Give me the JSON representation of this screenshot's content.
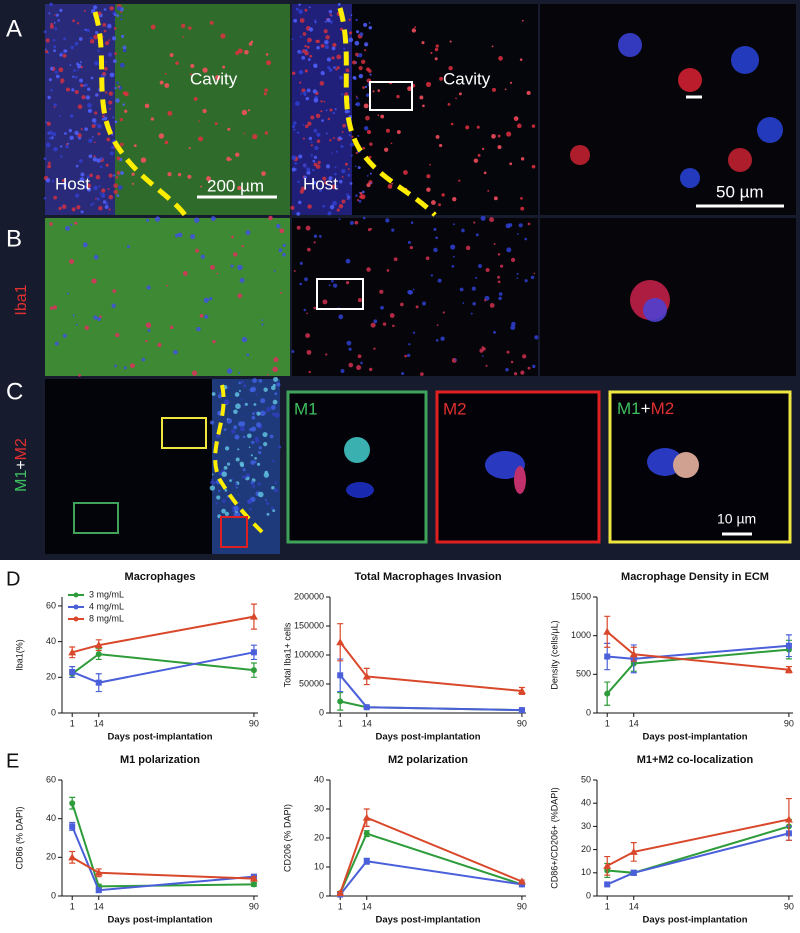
{
  "figure": {
    "panel_a": {
      "label": "A",
      "cavity_1": "Cavity",
      "host_1": "Host",
      "scale_1": "200 µm",
      "cavity_2": "Cavity",
      "host_2": "Host",
      "scale_2": "50 µm"
    },
    "panel_b": {
      "label": "B",
      "stain": "Iba1"
    },
    "panel_c": {
      "label": "C",
      "stain_m1": "M1",
      "stain_plus": "+",
      "stain_m2": "M2",
      "inset_m1": "M1",
      "inset_m2": "M2",
      "inset_merge_m1": "M1",
      "inset_merge_plus": "+",
      "inset_merge_m2": "M2",
      "scale": "10 µm"
    },
    "panel_d": {
      "label": "D"
    },
    "panel_e": {
      "label": "E"
    }
  },
  "chart_data": [
    {
      "type": "line",
      "title": "Macrophages",
      "x_label": "Days post-implantation",
      "y_label": "Iba1(%)",
      "x": [
        1,
        14,
        90
      ],
      "xlim": [
        -4,
        92
      ],
      "xticks": [
        1,
        14,
        90
      ],
      "ylim": [
        0,
        65
      ],
      "yticks": [
        0,
        20,
        40,
        60
      ],
      "legend": "upper left",
      "series": [
        {
          "name": "3 mg/mL",
          "color": "#2e9c3a",
          "values": [
            22,
            33,
            24
          ],
          "errors": [
            2,
            3,
            4
          ]
        },
        {
          "name": "4 mg/mL",
          "color": "#4a5fd9",
          "values": [
            23,
            17,
            34
          ],
          "errors": [
            3,
            5,
            4
          ]
        },
        {
          "name": "8 mg/mL",
          "color": "#d9482a",
          "values": [
            34,
            38,
            54
          ],
          "errors": [
            3,
            3,
            7
          ]
        }
      ]
    },
    {
      "type": "line",
      "title": "Total Macrophages Invasion",
      "x_label": "Days post-implantation",
      "y_label": "Total Iba1+ cells",
      "x": [
        1,
        14,
        90
      ],
      "xlim": [
        -4,
        92
      ],
      "xticks": [
        1,
        14,
        90
      ],
      "ylim": [
        0,
        200000
      ],
      "yticks": [
        0,
        50000,
        100000,
        150000,
        200000
      ],
      "series": [
        {
          "color": "#2e9c3a",
          "values": [
            20000,
            10000,
            5000
          ],
          "errors": [
            15000,
            2000,
            1000
          ]
        },
        {
          "color": "#4a5fd9",
          "values": [
            65000,
            10000,
            5000
          ],
          "errors": [
            28000,
            2000,
            1000
          ]
        },
        {
          "color": "#d9482a",
          "values": [
            122000,
            63000,
            38000
          ],
          "errors": [
            32000,
            14000,
            6000
          ]
        }
      ]
    },
    {
      "type": "line",
      "title": "Macrophage Density in ECM",
      "x_label": "Days post-implantation",
      "y_label": "Density (cells/µL)",
      "x": [
        1,
        14,
        90
      ],
      "xlim": [
        -4,
        92
      ],
      "xticks": [
        1,
        14,
        90
      ],
      "ylim": [
        0,
        1500
      ],
      "yticks": [
        0,
        500,
        1000,
        1500
      ],
      "series": [
        {
          "color": "#2e9c3a",
          "values": [
            250,
            640,
            820
          ],
          "errors": [
            150,
            100,
            120
          ]
        },
        {
          "color": "#4a5fd9",
          "values": [
            730,
            700,
            870
          ],
          "errors": [
            170,
            180,
            140
          ]
        },
        {
          "color": "#d9482a",
          "values": [
            1050,
            760,
            560
          ],
          "errors": [
            200,
            90,
            40
          ]
        }
      ]
    },
    {
      "type": "line",
      "title": "M1 polarization",
      "x_label": "Days post-implantation",
      "y_label": "CD86 (% DAPI)",
      "x": [
        1,
        14,
        90
      ],
      "xlim": [
        -4,
        92
      ],
      "xticks": [
        1,
        14,
        90
      ],
      "ylim": [
        0,
        60
      ],
      "yticks": [
        0,
        20,
        40,
        60
      ],
      "series": [
        {
          "color": "#2e9c3a",
          "values": [
            48,
            5,
            6
          ],
          "errors": [
            3,
            1,
            1
          ]
        },
        {
          "color": "#4a5fd9",
          "values": [
            36,
            3,
            10
          ],
          "errors": [
            2,
            1,
            1
          ]
        },
        {
          "color": "#d9482a",
          "values": [
            20,
            12,
            9
          ],
          "errors": [
            3,
            2,
            1
          ]
        }
      ]
    },
    {
      "type": "line",
      "title": "M2 polarization",
      "x_label": "Days post-implantation",
      "y_label": "CD206 (% DAPI)",
      "x": [
        1,
        14,
        90
      ],
      "xlim": [
        -4,
        92
      ],
      "xticks": [
        1,
        14,
        90
      ],
      "ylim": [
        0,
        40
      ],
      "yticks": [
        0,
        10,
        20,
        30,
        40
      ],
      "series": [
        {
          "color": "#2e9c3a",
          "values": [
            1,
            21.5,
            4
          ],
          "errors": [
            0.5,
            1,
            0.5
          ]
        },
        {
          "color": "#4a5fd9",
          "values": [
            0.5,
            12,
            4
          ],
          "errors": [
            0.3,
            1,
            0.5
          ]
        },
        {
          "color": "#d9482a",
          "values": [
            1,
            27,
            5
          ],
          "errors": [
            0.5,
            3,
            0.5
          ]
        }
      ]
    },
    {
      "type": "line",
      "title": "M1+M2 co-localization",
      "x_label": "Days post-implantation",
      "y_label": "CD86+/CD206+ (%DAPI)",
      "x": [
        1,
        14,
        90
      ],
      "xlim": [
        -4,
        92
      ],
      "xticks": [
        1,
        14,
        90
      ],
      "ylim": [
        0,
        50
      ],
      "yticks": [
        0,
        10,
        20,
        30,
        40,
        50
      ],
      "series": [
        {
          "color": "#2e9c3a",
          "values": [
            11,
            10,
            30
          ],
          "errors": [
            3,
            1,
            3
          ]
        },
        {
          "color": "#4a5fd9",
          "values": [
            5,
            10,
            27
          ],
          "errors": [
            0.5,
            1,
            3
          ]
        },
        {
          "color": "#d9482a",
          "values": [
            13,
            19,
            33
          ],
          "errors": [
            4,
            4,
            9
          ]
        }
      ]
    }
  ]
}
